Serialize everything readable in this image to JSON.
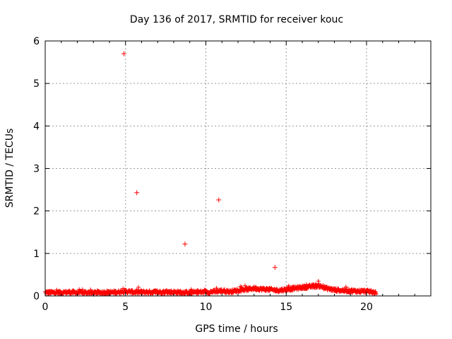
{
  "chart_data": {
    "type": "scatter",
    "title": "Day 136 of 2017, SRMTID for receiver kouc",
    "xlabel": "GPS time / hours",
    "ylabel": "SRMTID / TECUs",
    "xlim": [
      0,
      24
    ],
    "ylim": [
      0,
      6
    ],
    "xticks": [
      0,
      5,
      10,
      15,
      20
    ],
    "yticks": [
      0,
      1,
      2,
      3,
      4,
      5,
      6
    ],
    "grid": true,
    "marker": "+",
    "color": "#ff0000",
    "series": [
      {
        "outliers": [
          [
            4.9,
            5.7
          ],
          [
            5.7,
            2.43
          ],
          [
            8.7,
            1.22
          ],
          [
            10.8,
            2.26
          ],
          [
            14.3,
            0.67
          ]
        ],
        "baseline": [
          [
            0.0,
            0.08
          ],
          [
            0.5,
            0.08
          ],
          [
            1.0,
            0.08
          ],
          [
            1.5,
            0.09
          ],
          [
            2.0,
            0.08
          ],
          [
            2.5,
            0.08
          ],
          [
            3.0,
            0.07
          ],
          [
            3.5,
            0.08
          ],
          [
            4.0,
            0.08
          ],
          [
            4.5,
            0.09
          ],
          [
            5.0,
            0.11
          ],
          [
            5.5,
            0.09
          ],
          [
            6.0,
            0.09
          ],
          [
            6.5,
            0.09
          ],
          [
            7.0,
            0.09
          ],
          [
            7.5,
            0.09
          ],
          [
            8.0,
            0.09
          ],
          [
            8.5,
            0.08
          ],
          [
            9.0,
            0.08
          ],
          [
            9.5,
            0.09
          ],
          [
            10.0,
            0.09
          ],
          [
            10.5,
            0.1
          ],
          [
            11.0,
            0.12
          ],
          [
            11.5,
            0.1
          ],
          [
            12.0,
            0.13
          ],
          [
            12.5,
            0.15
          ],
          [
            13.0,
            0.18
          ],
          [
            13.5,
            0.16
          ],
          [
            14.0,
            0.15
          ],
          [
            14.5,
            0.13
          ],
          [
            15.0,
            0.15
          ],
          [
            15.5,
            0.18
          ],
          [
            16.0,
            0.2
          ],
          [
            16.5,
            0.22
          ],
          [
            17.0,
            0.24
          ],
          [
            17.5,
            0.18
          ],
          [
            18.0,
            0.14
          ],
          [
            18.5,
            0.13
          ],
          [
            19.0,
            0.12
          ],
          [
            19.5,
            0.11
          ],
          [
            20.0,
            0.11
          ],
          [
            20.6,
            0.08
          ]
        ]
      }
    ]
  }
}
